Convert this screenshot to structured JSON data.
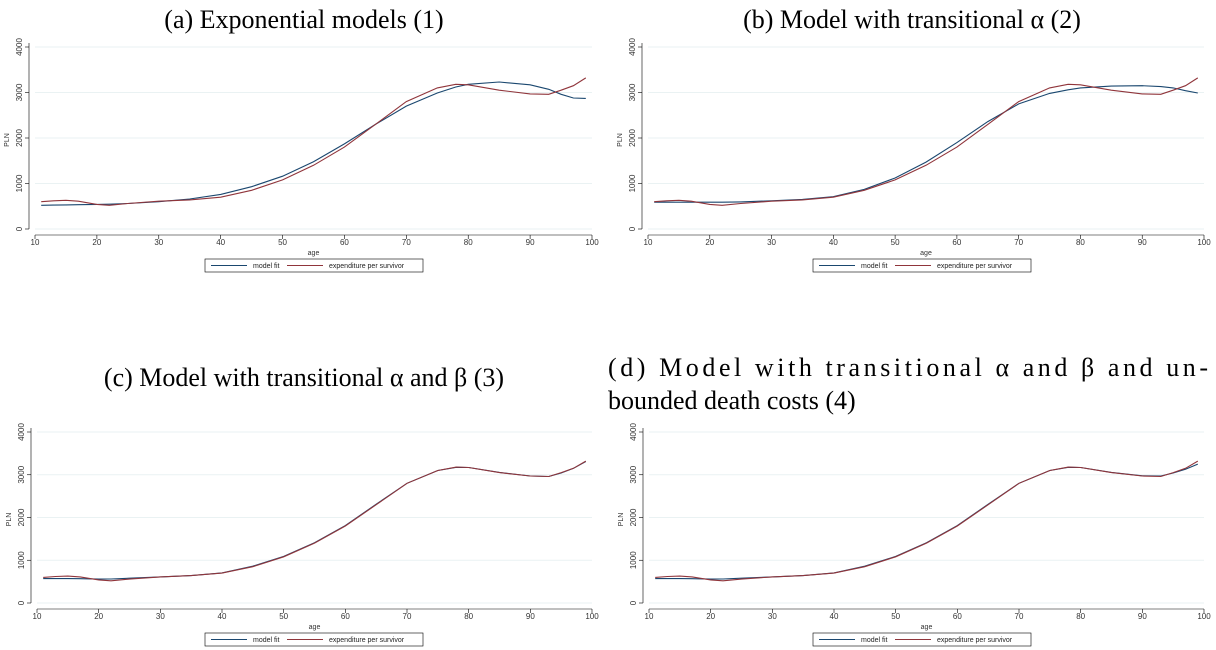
{
  "chart_data": [
    {
      "type": "line",
      "title": [
        "(a) Exponential models (1)"
      ],
      "xlabel": "age",
      "ylabel": "PLN",
      "x": [
        11,
        13,
        15,
        17,
        20,
        22,
        25,
        30,
        35,
        40,
        45,
        50,
        55,
        60,
        65,
        70,
        75,
        78,
        80,
        85,
        90,
        93,
        95,
        97,
        99
      ],
      "xlim": [
        10,
        100
      ],
      "xticks": [
        10,
        20,
        30,
        40,
        50,
        60,
        70,
        80,
        90,
        100
      ],
      "ylim": [
        0,
        4000
      ],
      "yticks": [
        0,
        1000,
        2000,
        3000,
        4000
      ],
      "grid": true,
      "series": [
        {
          "name": "model fit",
          "color": "#1a476f",
          "values": [
            520,
            525,
            530,
            535,
            540,
            545,
            560,
            600,
            660,
            760,
            930,
            1160,
            1480,
            1870,
            2300,
            2700,
            2990,
            3120,
            3180,
            3230,
            3170,
            3070,
            2960,
            2880,
            2870
          ]
        },
        {
          "name": "expenditure per survivor",
          "color": "#90353b",
          "values": [
            600,
            620,
            630,
            610,
            540,
            520,
            560,
            610,
            640,
            700,
            850,
            1080,
            1400,
            1800,
            2300,
            2800,
            3100,
            3180,
            3170,
            3050,
            2970,
            2960,
            3050,
            3150,
            3320
          ]
        }
      ]
    },
    {
      "type": "line",
      "title": [
        "(b) Model with transitional α (2)"
      ],
      "xlabel": "age",
      "ylabel": "PLN",
      "x": [
        11,
        13,
        15,
        17,
        20,
        22,
        25,
        30,
        35,
        40,
        45,
        50,
        55,
        60,
        65,
        70,
        75,
        78,
        80,
        85,
        90,
        93,
        95,
        97,
        99
      ],
      "xlim": [
        10,
        100
      ],
      "xticks": [
        10,
        20,
        30,
        40,
        50,
        60,
        70,
        80,
        90,
        100
      ],
      "ylim": [
        0,
        4000
      ],
      "yticks": [
        0,
        1000,
        2000,
        3000,
        4000
      ],
      "grid": true,
      "series": [
        {
          "name": "model fit",
          "color": "#1a476f",
          "values": [
            590,
            590,
            590,
            590,
            590,
            590,
            595,
            620,
            650,
            710,
            870,
            1120,
            1470,
            1900,
            2360,
            2750,
            2980,
            3060,
            3100,
            3140,
            3150,
            3130,
            3100,
            3040,
            2990
          ]
        },
        {
          "name": "expenditure per survivor",
          "color": "#90353b",
          "values": [
            600,
            620,
            630,
            610,
            540,
            520,
            560,
            610,
            640,
            700,
            850,
            1080,
            1400,
            1800,
            2300,
            2800,
            3100,
            3180,
            3170,
            3050,
            2970,
            2960,
            3050,
            3150,
            3320
          ]
        }
      ]
    },
    {
      "type": "line",
      "title": [
        "(c) Model with transitional α and β (3)"
      ],
      "xlabel": "age",
      "ylabel": "PLN",
      "x": [
        11,
        13,
        15,
        17,
        20,
        22,
        25,
        30,
        35,
        40,
        45,
        50,
        55,
        60,
        65,
        70,
        75,
        78,
        80,
        85,
        90,
        93,
        95,
        97,
        99
      ],
      "xlim": [
        10,
        100
      ],
      "xticks": [
        10,
        20,
        30,
        40,
        50,
        60,
        70,
        80,
        90,
        100
      ],
      "ylim": [
        0,
        4000
      ],
      "yticks": [
        0,
        1000,
        2000,
        3000,
        4000
      ],
      "grid": true,
      "series": [
        {
          "name": "model fit",
          "color": "#1a476f",
          "values": [
            570,
            570,
            570,
            568,
            560,
            562,
            580,
            610,
            640,
            705,
            860,
            1090,
            1410,
            1810,
            2310,
            2800,
            3100,
            3175,
            3170,
            3055,
            2970,
            2960,
            3040,
            3150,
            3310
          ]
        },
        {
          "name": "expenditure per survivor",
          "color": "#90353b",
          "values": [
            600,
            620,
            630,
            610,
            540,
            520,
            560,
            610,
            640,
            700,
            850,
            1080,
            1400,
            1800,
            2300,
            2800,
            3100,
            3180,
            3170,
            3050,
            2970,
            2960,
            3050,
            3150,
            3320
          ]
        }
      ]
    },
    {
      "type": "line",
      "title": [
        "(d) Model with transitional α and β and un-",
        "bounded death costs (4)"
      ],
      "xlabel": "age",
      "ylabel": "PLN",
      "x": [
        11,
        13,
        15,
        17,
        20,
        22,
        25,
        30,
        35,
        40,
        45,
        50,
        55,
        60,
        65,
        70,
        75,
        78,
        80,
        85,
        90,
        93,
        95,
        97,
        99
      ],
      "xlim": [
        10,
        100
      ],
      "xticks": [
        10,
        20,
        30,
        40,
        50,
        60,
        70,
        80,
        90,
        100
      ],
      "ylim": [
        0,
        4000
      ],
      "yticks": [
        0,
        1000,
        2000,
        3000,
        4000
      ],
      "grid": true,
      "series": [
        {
          "name": "model fit",
          "color": "#1a476f",
          "values": [
            570,
            570,
            570,
            568,
            560,
            562,
            580,
            610,
            640,
            705,
            860,
            1090,
            1410,
            1810,
            2310,
            2800,
            3100,
            3175,
            3170,
            3055,
            2975,
            2970,
            3040,
            3130,
            3250
          ]
        },
        {
          "name": "expenditure per survivor",
          "color": "#90353b",
          "values": [
            600,
            620,
            630,
            610,
            540,
            520,
            560,
            610,
            640,
            700,
            850,
            1080,
            1400,
            1800,
            2300,
            2800,
            3100,
            3180,
            3170,
            3050,
            2970,
            2960,
            3050,
            3150,
            3320
          ]
        }
      ]
    }
  ]
}
